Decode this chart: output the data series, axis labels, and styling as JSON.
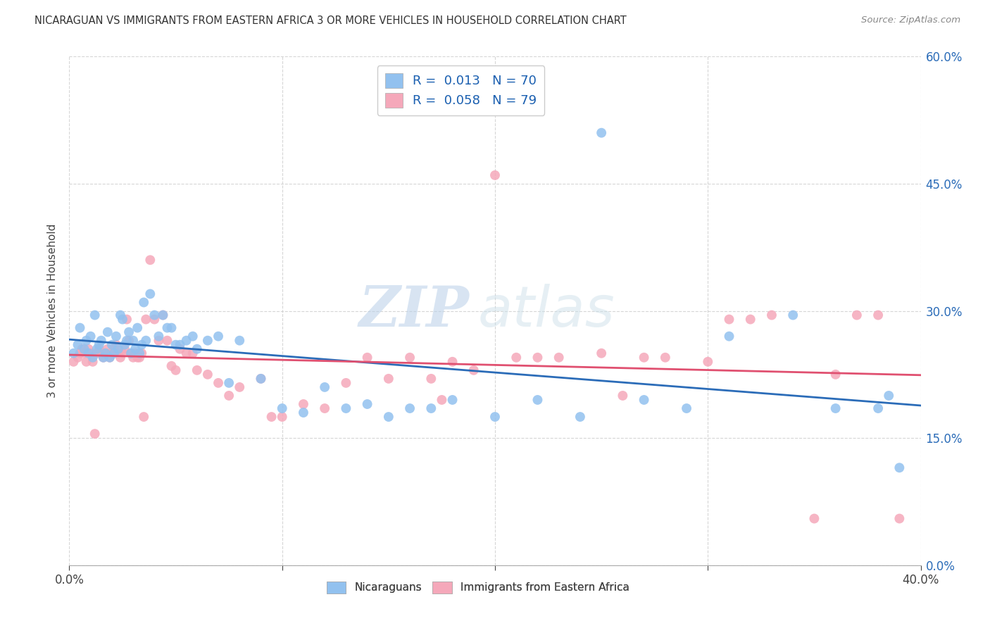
{
  "title": "NICARAGUAN VS IMMIGRANTS FROM EASTERN AFRICA 3 OR MORE VEHICLES IN HOUSEHOLD CORRELATION CHART",
  "source": "Source: ZipAtlas.com",
  "ylabel": "3 or more Vehicles in Household",
  "xlim": [
    0.0,
    0.4
  ],
  "ylim": [
    0.0,
    0.6
  ],
  "xticks": [
    0.0,
    0.1,
    0.2,
    0.3,
    0.4
  ],
  "yticks": [
    0.0,
    0.15,
    0.3,
    0.45,
    0.6
  ],
  "xticklabels_show": [
    "0.0%",
    "",
    "",
    "",
    "40.0%"
  ],
  "yticklabels_right": [
    "0.0%",
    "15.0%",
    "30.0%",
    "45.0%",
    "60.0%"
  ],
  "color_blue": "#92C1EF",
  "color_pink": "#F5A8BA",
  "line_color_blue": "#2B6CB8",
  "line_color_pink": "#E05070",
  "watermark_zip": "ZIP",
  "watermark_atlas": "atlas",
  "legend_label1": "Nicaraguans",
  "legend_label2": "Immigrants from Eastern Africa",
  "legend_r1_text": "R =  0.013   N = 70",
  "legend_r2_text": "R =  0.058   N = 79",
  "blue_scatter_x": [
    0.002,
    0.004,
    0.005,
    0.007,
    0.008,
    0.009,
    0.01,
    0.011,
    0.012,
    0.013,
    0.014,
    0.015,
    0.016,
    0.017,
    0.018,
    0.019,
    0.02,
    0.021,
    0.022,
    0.023,
    0.024,
    0.025,
    0.026,
    0.027,
    0.028,
    0.029,
    0.03,
    0.031,
    0.032,
    0.033,
    0.034,
    0.035,
    0.036,
    0.038,
    0.04,
    0.042,
    0.044,
    0.046,
    0.048,
    0.05,
    0.052,
    0.055,
    0.058,
    0.06,
    0.065,
    0.07,
    0.075,
    0.08,
    0.09,
    0.1,
    0.11,
    0.12,
    0.13,
    0.14,
    0.15,
    0.16,
    0.17,
    0.18,
    0.2,
    0.22,
    0.24,
    0.25,
    0.27,
    0.29,
    0.31,
    0.34,
    0.36,
    0.38,
    0.385,
    0.39
  ],
  "blue_scatter_y": [
    0.25,
    0.26,
    0.28,
    0.255,
    0.265,
    0.25,
    0.27,
    0.245,
    0.295,
    0.255,
    0.26,
    0.265,
    0.245,
    0.25,
    0.275,
    0.245,
    0.26,
    0.25,
    0.27,
    0.255,
    0.295,
    0.29,
    0.26,
    0.265,
    0.275,
    0.25,
    0.265,
    0.255,
    0.28,
    0.25,
    0.26,
    0.31,
    0.265,
    0.32,
    0.295,
    0.27,
    0.295,
    0.28,
    0.28,
    0.26,
    0.26,
    0.265,
    0.27,
    0.255,
    0.265,
    0.27,
    0.215,
    0.265,
    0.22,
    0.185,
    0.18,
    0.21,
    0.185,
    0.19,
    0.175,
    0.185,
    0.185,
    0.195,
    0.175,
    0.195,
    0.175,
    0.51,
    0.195,
    0.185,
    0.27,
    0.295,
    0.185,
    0.185,
    0.2,
    0.115
  ],
  "pink_scatter_x": [
    0.002,
    0.004,
    0.005,
    0.006,
    0.007,
    0.008,
    0.009,
    0.01,
    0.011,
    0.012,
    0.013,
    0.014,
    0.015,
    0.016,
    0.017,
    0.018,
    0.019,
    0.02,
    0.021,
    0.022,
    0.023,
    0.024,
    0.025,
    0.026,
    0.027,
    0.028,
    0.029,
    0.03,
    0.031,
    0.032,
    0.033,
    0.034,
    0.035,
    0.036,
    0.038,
    0.04,
    0.042,
    0.044,
    0.046,
    0.048,
    0.05,
    0.052,
    0.055,
    0.058,
    0.06,
    0.065,
    0.07,
    0.075,
    0.08,
    0.09,
    0.095,
    0.1,
    0.11,
    0.12,
    0.13,
    0.14,
    0.15,
    0.16,
    0.17,
    0.175,
    0.18,
    0.19,
    0.2,
    0.21,
    0.22,
    0.23,
    0.25,
    0.26,
    0.27,
    0.28,
    0.3,
    0.31,
    0.32,
    0.33,
    0.35,
    0.36,
    0.37,
    0.38,
    0.39
  ],
  "pink_scatter_y": [
    0.24,
    0.245,
    0.25,
    0.255,
    0.25,
    0.24,
    0.255,
    0.25,
    0.24,
    0.155,
    0.25,
    0.255,
    0.25,
    0.245,
    0.25,
    0.255,
    0.245,
    0.25,
    0.255,
    0.26,
    0.25,
    0.245,
    0.25,
    0.255,
    0.29,
    0.265,
    0.25,
    0.245,
    0.25,
    0.245,
    0.245,
    0.25,
    0.175,
    0.29,
    0.36,
    0.29,
    0.265,
    0.295,
    0.265,
    0.235,
    0.23,
    0.255,
    0.25,
    0.25,
    0.23,
    0.225,
    0.215,
    0.2,
    0.21,
    0.22,
    0.175,
    0.175,
    0.19,
    0.185,
    0.215,
    0.245,
    0.22,
    0.245,
    0.22,
    0.195,
    0.24,
    0.23,
    0.46,
    0.245,
    0.245,
    0.245,
    0.25,
    0.2,
    0.245,
    0.245,
    0.24,
    0.29,
    0.29,
    0.295,
    0.055,
    0.225,
    0.295,
    0.295,
    0.055
  ]
}
